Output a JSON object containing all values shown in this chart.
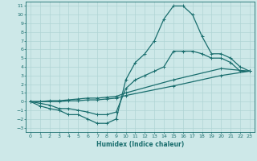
{
  "xlabel": "Humidex (Indice chaleur)",
  "xlim": [
    -0.5,
    23.5
  ],
  "ylim": [
    -3.5,
    11.5
  ],
  "xticks": [
    0,
    1,
    2,
    3,
    4,
    5,
    6,
    7,
    8,
    9,
    10,
    11,
    12,
    13,
    14,
    15,
    16,
    17,
    18,
    19,
    20,
    21,
    22,
    23
  ],
  "yticks": [
    -3,
    -2,
    -1,
    0,
    1,
    2,
    3,
    4,
    5,
    6,
    7,
    8,
    9,
    10,
    11
  ],
  "bg_color": "#cde8e8",
  "grid_color": "#b0d4d4",
  "line_color": "#1a6e6e",
  "line_width": 0.9,
  "marker": "+",
  "markersize": 3.5,
  "line1_x": [
    0,
    1,
    2,
    3,
    4,
    5,
    6,
    7,
    8,
    9,
    10,
    11,
    12,
    13,
    14,
    15,
    16,
    17,
    18,
    19,
    20,
    21,
    22,
    23
  ],
  "line1_y": [
    0,
    -0.5,
    -0.8,
    -1.0,
    -1.5,
    -1.5,
    -2.0,
    -2.5,
    -2.5,
    -2.0,
    2.5,
    4.5,
    5.5,
    7.0,
    9.5,
    11.0,
    11.0,
    10.0,
    7.5,
    5.5,
    5.5,
    5.0,
    4.0,
    3.5
  ],
  "line2_x": [
    0,
    1,
    2,
    3,
    4,
    5,
    6,
    7,
    8,
    9,
    10,
    11,
    12,
    13,
    14,
    15,
    16,
    17,
    18,
    19,
    20,
    21,
    22,
    23
  ],
  "line2_y": [
    0,
    -0.2,
    -0.4,
    -0.8,
    -0.8,
    -1.0,
    -1.2,
    -1.5,
    -1.5,
    -1.2,
    1.5,
    2.5,
    3.0,
    3.5,
    4.0,
    5.8,
    5.8,
    5.8,
    5.5,
    5.0,
    5.0,
    4.5,
    3.5,
    3.5
  ],
  "line3_x": [
    0,
    1,
    2,
    3,
    4,
    5,
    6,
    7,
    8,
    9,
    10,
    15,
    20,
    23
  ],
  "line3_y": [
    0,
    0.0,
    0.1,
    0.1,
    0.2,
    0.3,
    0.4,
    0.4,
    0.5,
    0.6,
    1.0,
    2.5,
    3.8,
    3.5
  ],
  "line4_x": [
    0,
    1,
    2,
    3,
    4,
    5,
    6,
    7,
    8,
    9,
    10,
    15,
    20,
    23
  ],
  "line4_y": [
    0,
    0.0,
    0.0,
    0.0,
    0.1,
    0.1,
    0.2,
    0.2,
    0.3,
    0.4,
    0.7,
    1.8,
    3.0,
    3.5
  ]
}
